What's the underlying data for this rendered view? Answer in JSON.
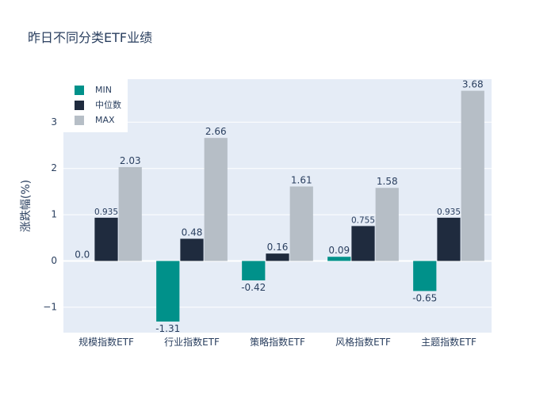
{
  "chart_data": {
    "type": "bar",
    "title": "昨日不同分类ETF业绩",
    "xlabel": "",
    "ylabel": "涨跌幅(%)",
    "ylim": [
      -1.55,
      3.93
    ],
    "yticks": [
      -1,
      0,
      1,
      2,
      3
    ],
    "ytick_labels": [
      "−1",
      "0",
      "1",
      "2",
      "3"
    ],
    "categories": [
      "规模指数ETF",
      "行业指数ETF",
      "策略指数ETF",
      "风格指数ETF",
      "主题指数ETF"
    ],
    "series": [
      {
        "name": "MIN",
        "color": "#00918a",
        "values": [
          0.0,
          -1.31,
          -0.42,
          0.09,
          -0.65
        ],
        "labels": [
          "0.0",
          "-1.31",
          "-0.42",
          "0.09",
          "-0.65"
        ]
      },
      {
        "name": "中位数",
        "color": "#1f2b3e",
        "values": [
          0.935,
          0.48,
          0.16,
          0.755,
          0.935
        ],
        "labels": [
          "0.935",
          "0.48",
          "0.16",
          "0.755",
          "0.935"
        ]
      },
      {
        "name": "MAX",
        "color": "#b6bec6",
        "values": [
          2.03,
          2.66,
          1.61,
          1.58,
          3.68
        ],
        "labels": [
          "2.03",
          "2.66",
          "1.61",
          "1.58",
          "3.68"
        ]
      }
    ],
    "grid": true,
    "legend_position": "top-left",
    "plot_background": "#e5ecf6"
  }
}
